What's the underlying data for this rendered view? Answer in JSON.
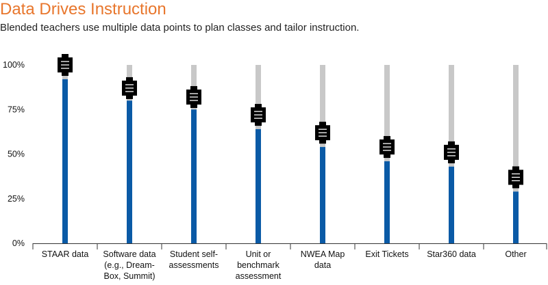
{
  "header": {
    "title": "Data Drives Instruction",
    "subtitle": "Blended teachers use multiple data points to plan classes and tailor instruction."
  },
  "chart_data": {
    "type": "bar",
    "title": "Data Drives Instruction",
    "subtitle": "Blended teachers use multiple data points to plan classes and tailor instruction.",
    "xlabel": "",
    "ylabel": "",
    "ylim": [
      0,
      100
    ],
    "yticks": [
      0,
      25,
      50,
      75,
      100
    ],
    "ytick_labels": [
      "0%",
      "25%",
      "50%",
      "75%",
      "100%"
    ],
    "grid": false,
    "categories": [
      "STAAR data",
      "Software data\n(e.g., Dream-\nBox, Summit)",
      "Student self-\nassessments",
      "Unit or\nbenchmark\nassessment",
      "NWEA Map\ndata",
      "Exit Tickets",
      "Star360 data",
      "Other"
    ],
    "series": [
      {
        "values": [
          92,
          80,
          75,
          64,
          54,
          46,
          43,
          29
        ]
      },
      {
        "values": [
          100,
          87,
          82,
          72,
          62,
          54,
          51,
          37
        ]
      },
      {
        "values": [
          100,
          100,
          100,
          100,
          100,
          100,
          100,
          100
        ]
      }
    ],
    "colors": {
      "bar": "#0a5aa6",
      "track": "#c8c8c8",
      "marker": "#000000",
      "marker_lines": "#ffffff",
      "axis": "#333333",
      "title": "#e8762c"
    }
  }
}
